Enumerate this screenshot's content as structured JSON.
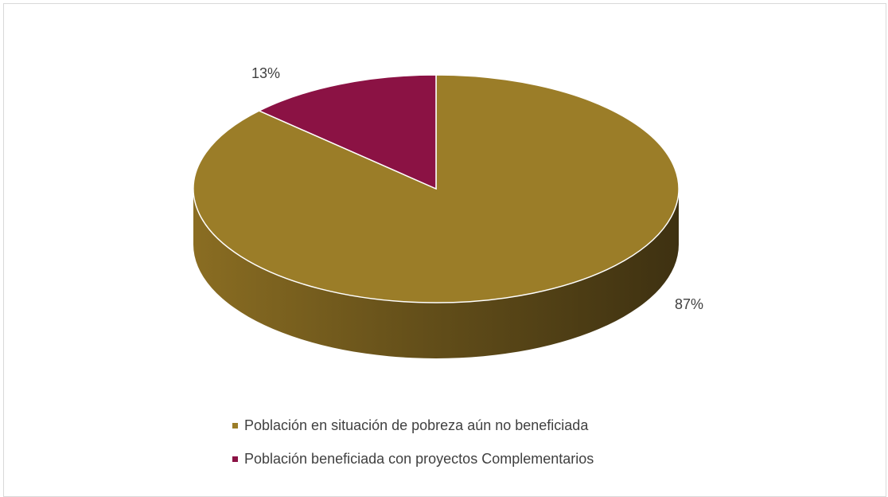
{
  "chart_data": {
    "type": "pie",
    "title": "",
    "categories": [
      "Población en situación de pobreza aún no beneficiada",
      "Población beneficiada con proyectos Complementarios"
    ],
    "values": [
      87,
      13
    ],
    "labels": [
      "87%",
      "13%"
    ],
    "colors": [
      "#9b7d28",
      "#8b1244"
    ],
    "legend_position": "bottom",
    "style": "3d"
  }
}
